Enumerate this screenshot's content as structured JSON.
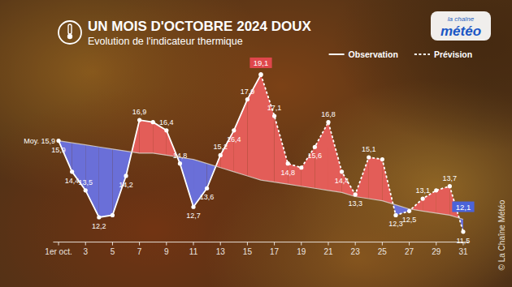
{
  "chart_data": {
    "type": "line",
    "title": "UN MOIS D'OCTOBRE 2024 DOUX",
    "subtitle": "Evolution de l'indicateur thermique",
    "annotations": [
      "la chaîne",
      "météo",
      "© La Chaîne Météo"
    ],
    "x": [
      1,
      2,
      3,
      4,
      5,
      6,
      7,
      8,
      9,
      10,
      11,
      12,
      13,
      14,
      15,
      16,
      17,
      18,
      19,
      20,
      21,
      22,
      23,
      24,
      25,
      26,
      27,
      28,
      29,
      30,
      31
    ],
    "xlim": [
      0.6,
      31.4
    ],
    "xticks": [
      {
        "value": 1,
        "label": "1er oct."
      },
      3,
      5,
      7,
      9,
      11,
      13,
      15,
      17,
      19,
      21,
      23,
      25,
      27,
      29,
      31
    ],
    "ylim": [
      11,
      20
    ],
    "grid": false,
    "tick_labels": "x",
    "legend": "top-right",
    "data_labels": true,
    "series": [
      {
        "name": "Observation",
        "color": "#ffffff",
        "line_style": "solid",
        "marker": "circle",
        "values": [
          15.9,
          14.4,
          13.5,
          12.2,
          12.3,
          14.2,
          16.9,
          16.8,
          16.4,
          14.8,
          12.7,
          13.6,
          15.2,
          16.4,
          17.9,
          19.1,
          null,
          null,
          null,
          null,
          null,
          null,
          null,
          null,
          null,
          null,
          null,
          null,
          null,
          null,
          null
        ],
        "value_labels": [
          "15,9",
          "14,4",
          "13,5",
          "12,2",
          null,
          "14,2",
          "16,9",
          null,
          "16,4",
          "14,8",
          "12,7",
          "13,6",
          "15,2",
          "16,4",
          "17,9",
          "19,1",
          null,
          null,
          null,
          null,
          null,
          null,
          null,
          null,
          null,
          null,
          null,
          null,
          null,
          null,
          null
        ]
      },
      {
        "name": "Prévision",
        "color": "#ffffff",
        "line_style": "dashed",
        "marker": "circle",
        "values": [
          null,
          null,
          null,
          null,
          null,
          null,
          null,
          null,
          null,
          null,
          null,
          null,
          null,
          null,
          null,
          19.1,
          17.1,
          14.8,
          14.6,
          15.6,
          16.8,
          14.4,
          13.3,
          15.1,
          15.0,
          12.3,
          12.5,
          13.1,
          13.5,
          13.7,
          11.5
        ],
        "value_labels": [
          null,
          null,
          null,
          null,
          null,
          null,
          null,
          null,
          null,
          null,
          null,
          null,
          null,
          null,
          null,
          null,
          "17,1",
          "14,8",
          null,
          "15,6",
          "16,8",
          "14,4",
          "13,3",
          "15,1",
          null,
          "12,3",
          "12,5",
          "13,1",
          null,
          "13,7",
          "11,5"
        ]
      },
      {
        "color": "#d8d0c8",
        "line_style": "solid",
        "marker": "none",
        "values": [
          15.9,
          15.8,
          15.7,
          15.6,
          15.5,
          15.4,
          15.3,
          15.3,
          15.2,
          15.1,
          15.0,
          14.8,
          14.6,
          14.4,
          14.2,
          14.0,
          13.9,
          13.8,
          13.7,
          13.6,
          13.5,
          13.4,
          13.2,
          13.1,
          13.0,
          12.8,
          12.6,
          12.5,
          12.4,
          12.3,
          12.1
        ],
        "value_labels": [
          "Moy. 15,9",
          null,
          null,
          null,
          null,
          null,
          null,
          null,
          null,
          null,
          null,
          null,
          null,
          null,
          null,
          null,
          null,
          null,
          null,
          null,
          null,
          null,
          null,
          null,
          null,
          null,
          null,
          null,
          null,
          null,
          "12,1"
        ]
      }
    ]
  }
}
